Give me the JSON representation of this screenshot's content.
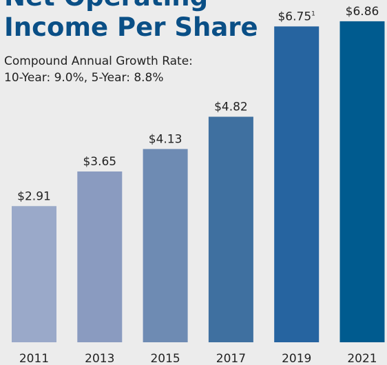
{
  "chart_data": {
    "type": "bar",
    "title": "Net Operating Income Per Share",
    "subtitle": [
      "Compound Annual Growth Rate:",
      "10-Year: 9.0%, 5-Year: 8.8%"
    ],
    "categories": [
      "2011",
      "2013",
      "2015",
      "2017",
      "2019",
      "2021"
    ],
    "values": [
      2.91,
      3.65,
      4.13,
      4.82,
      6.75,
      6.86
    ],
    "value_labels": [
      "$2.91",
      "$3.65",
      "$4.13",
      "$4.82",
      "$6.75",
      "$6.86"
    ],
    "footnote_marks": [
      null,
      null,
      null,
      null,
      "1",
      null
    ],
    "colors": [
      "#9aa9c9",
      "#8a9bc0",
      "#6e8bb3",
      "#3f70a0",
      "#2664a0",
      "#005b8f"
    ],
    "ylim": [
      0,
      7.3
    ]
  }
}
